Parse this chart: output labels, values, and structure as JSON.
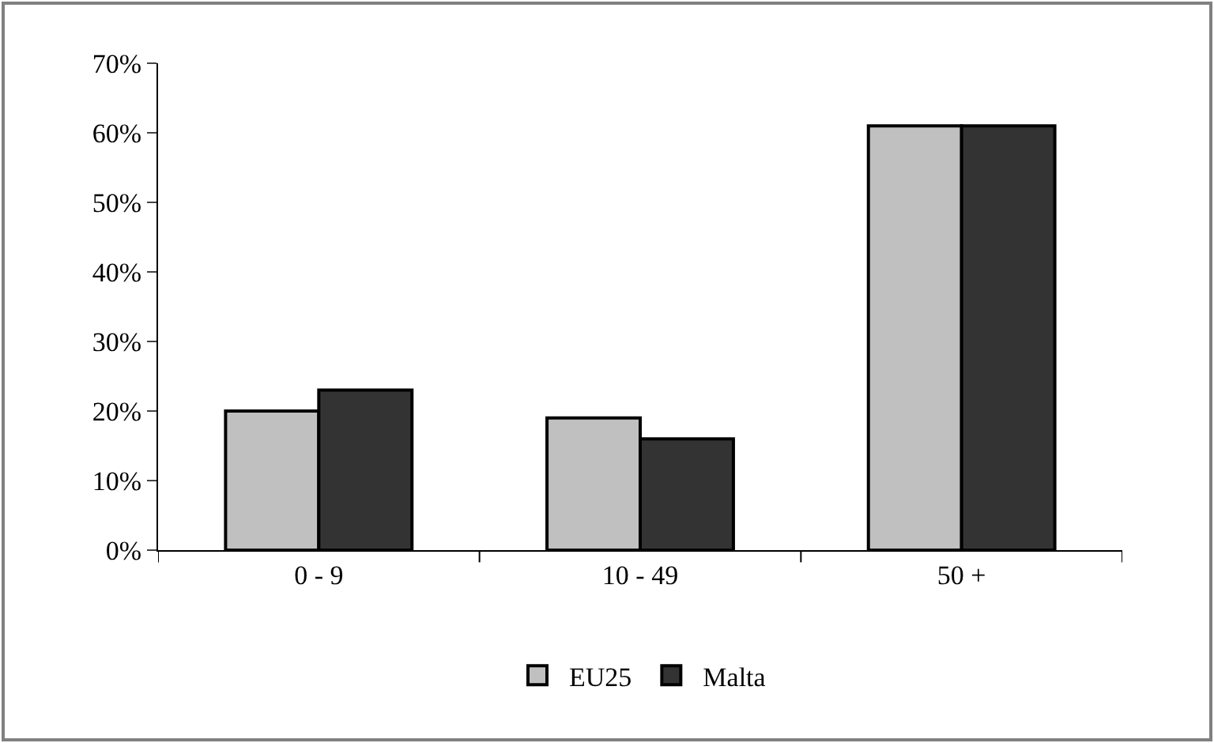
{
  "chart_data": {
    "type": "bar",
    "categories": [
      "0 - 9",
      "10 - 49",
      "50 +"
    ],
    "series": [
      {
        "name": "EU25",
        "color": "#c0c0c0",
        "values": [
          20,
          19,
          61
        ]
      },
      {
        "name": "Malta",
        "color": "#333333",
        "values": [
          23,
          16,
          61
        ]
      }
    ],
    "ylim": [
      0,
      70
    ],
    "yticks": [
      {
        "value": 0,
        "label": "0%"
      },
      {
        "value": 10,
        "label": "10%"
      },
      {
        "value": 20,
        "label": "20%"
      },
      {
        "value": 30,
        "label": "30%"
      },
      {
        "value": 40,
        "label": "40%"
      },
      {
        "value": 50,
        "label": "50%"
      },
      {
        "value": 60,
        "label": "60%"
      },
      {
        "value": 70,
        "label": "70%"
      }
    ],
    "legend": "bottom"
  }
}
